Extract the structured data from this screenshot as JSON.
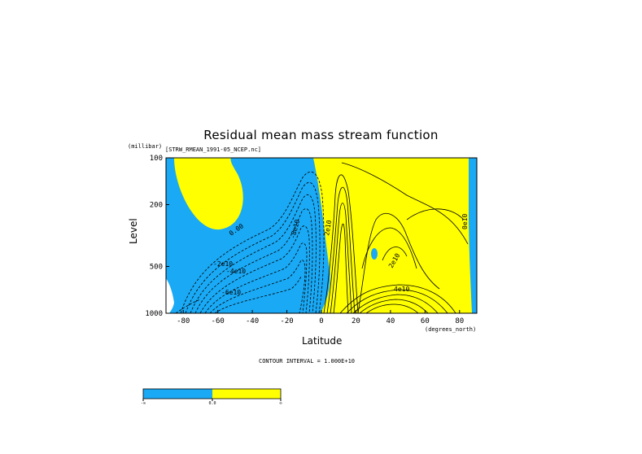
{
  "chart_data": {
    "type": "contour",
    "title": "Residual mean mass stream function",
    "dataset_label": "[STRW_RMEAN_1991-05_NCEP.nc]",
    "xlabel": "Latitude",
    "x_units": "(degrees_north)",
    "ylabel": "Level",
    "y_units": "(millibar)",
    "xlim": [
      -90,
      90
    ],
    "ylim": [
      1000,
      100
    ],
    "y_scale": "log",
    "x_ticks": [
      -80,
      -60,
      -40,
      -20,
      0,
      20,
      40,
      60,
      80
    ],
    "x_tick_labels": [
      "-80",
      "-60",
      "-40",
      "-20",
      "0",
      "20",
      "40",
      "60",
      "80"
    ],
    "y_ticks": [
      100,
      200,
      500,
      1000
    ],
    "y_tick_labels": [
      "100",
      "200",
      "500",
      "1000"
    ],
    "contour_interval_text": "CONTOUR INTERVAL = 1.000E+10",
    "contour_labels": [
      "0.00",
      "-2e10",
      "-4e10",
      "-6e10",
      "-8e10",
      "2e10",
      "4e10",
      "0e10"
    ],
    "fill_colors": {
      "negative": "#1aa9f5",
      "positive": "#ffff00"
    },
    "colorbar": {
      "segments": [
        "#1aa9f5",
        "#ffff00"
      ],
      "tick_labels": [
        "-∞",
        "0.0",
        "∞"
      ]
    }
  }
}
